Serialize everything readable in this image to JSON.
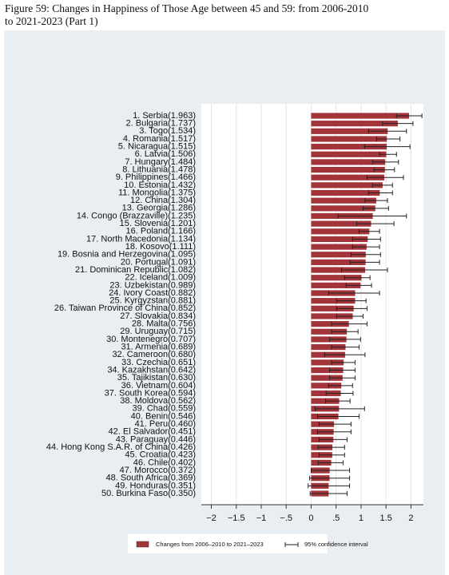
{
  "chart_data": {
    "type": "hbar",
    "title_lines": [
      "Figure 59: Changes in Happiness of Those Age between 45 and 59: from 2006-2010",
      "to 2021-2023 (Part 1)"
    ],
    "categories": [
      "1. Serbia(1.963)",
      "2. Bulgaria(1.737)",
      "3. Togo(1.534)",
      "4. Romania(1.517)",
      "5. Nicaragua(1.515)",
      "6. Latvia(1.506)",
      "7. Hungary(1.484)",
      "8. Lithuania(1.478)",
      "9. Philippines(1.466)",
      "10. Estonia(1.432)",
      "11. Mongolia(1.375)",
      "12. China(1.304)",
      "13. Georgia(1.286)",
      "14. Congo (Brazzaville)(1.235)",
      "15. Slovenia(1.201)",
      "16. Poland(1.166)",
      "17. North Macedonia(1.134)",
      "18. Kosovo(1.111)",
      "19. Bosnia and Herzegovina(1.095)",
      "20. Portugal(1.091)",
      "21. Dominican Republic(1.082)",
      "22. Iceland(1.009)",
      "23. Uzbekistan(0.989)",
      "24. Ivory Coast(0.882)",
      "25. Kyrgyzstan(0.881)",
      "26. Taiwan Province of China(0.852)",
      "27. Slovakia(0.834)",
      "28. Malta(0.756)",
      "29. Uruguay(0.715)",
      "30. Montenegro(0.707)",
      "31. Armenia(0.689)",
      "32. Cameroon(0.680)",
      "33. Czechia(0.651)",
      "34. Kazakhstan(0.642)",
      "35. Tajikistan(0.630)",
      "36. Vietnam(0.604)",
      "37. South Korea(0.594)",
      "38. Moldova(0.562)",
      "39. Chad(0.559)",
      "40. Benin(0.546)",
      "41. Peru(0.460)",
      "42. El Salvador(0.451)",
      "43. Paraguay(0.446)",
      "44. Hong Kong S.A.R. of China(0.426)",
      "45. Croatia(0.423)",
      "46. Chile(0.402)",
      "47. Morocco(0.372)",
      "48. South Africa(0.369)",
      "49. Honduras(0.351)",
      "50. Burkina Faso(0.350)"
    ],
    "series": [
      {
        "name": "Changes from 2006–2010 to 2021–2023",
        "color": "#a3343a",
        "values": [
          1.963,
          1.737,
          1.534,
          1.517,
          1.515,
          1.506,
          1.484,
          1.478,
          1.466,
          1.432,
          1.375,
          1.304,
          1.286,
          1.235,
          1.201,
          1.166,
          1.134,
          1.111,
          1.095,
          1.091,
          1.082,
          1.009,
          0.989,
          0.882,
          0.881,
          0.852,
          0.834,
          0.756,
          0.715,
          0.707,
          0.689,
          0.68,
          0.651,
          0.642,
          0.63,
          0.604,
          0.594,
          0.562,
          0.559,
          0.546,
          0.46,
          0.451,
          0.446,
          0.426,
          0.423,
          0.402,
          0.372,
          0.369,
          0.351,
          0.35
        ],
        "ci_low": [
          1.71,
          1.43,
          1.15,
          1.31,
          1.07,
          1.37,
          1.23,
          1.26,
          1.12,
          1.23,
          1.15,
          1.08,
          1.04,
          0.54,
          0.91,
          0.96,
          0.83,
          0.83,
          0.8,
          0.78,
          0.61,
          0.67,
          0.7,
          0.35,
          0.51,
          0.51,
          0.51,
          0.41,
          0.41,
          0.37,
          0.41,
          0.27,
          0.41,
          0.37,
          0.37,
          0.35,
          0.3,
          0.29,
          0.08,
          0.13,
          0.16,
          0.13,
          0.16,
          0.14,
          0.16,
          0.14,
          0.0,
          -0.03,
          -0.06,
          -0.02
        ],
        "ci_high": [
          2.22,
          2.04,
          1.91,
          1.78,
          1.98,
          1.71,
          1.75,
          1.67,
          1.85,
          1.63,
          1.63,
          1.53,
          1.55,
          1.91,
          1.66,
          1.37,
          1.39,
          1.37,
          1.39,
          1.37,
          1.53,
          1.18,
          1.21,
          1.37,
          1.1,
          1.12,
          1.04,
          1.12,
          0.94,
          0.99,
          0.96,
          1.08,
          0.88,
          0.88,
          0.88,
          0.83,
          0.84,
          0.78,
          1.07,
          0.96,
          0.8,
          0.8,
          0.72,
          0.67,
          0.67,
          0.64,
          0.77,
          0.77,
          0.77,
          0.72
        ]
      }
    ],
    "ci_name": "95% confidence interval",
    "xlim": [
      -2.2,
      2.25
    ],
    "xticks": [
      {
        "value": -2,
        "label": "−2"
      },
      {
        "value": -1.5,
        "label": "−1.5"
      },
      {
        "value": -1,
        "label": "−1"
      },
      {
        "value": -0.5,
        "label": "−.5"
      },
      0,
      {
        "value": 0.5,
        "label": ".5"
      },
      1,
      1.5,
      2
    ],
    "grid": true
  }
}
